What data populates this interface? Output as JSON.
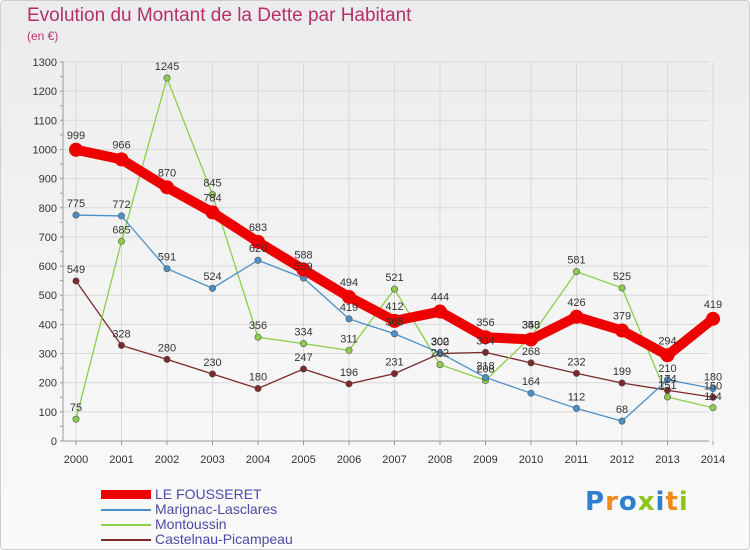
{
  "title": "Evolution du Montant de la Dette par Habitant",
  "subtitle": "(en €)",
  "logo": {
    "text": "Proxiti",
    "letter_colors": [
      "#2f7fd0",
      "#f08a1c",
      "#2f7fd0",
      "#8fc31f",
      "#2f7fd0",
      "#f08a1c",
      "#8fc31f"
    ]
  },
  "chart_data": {
    "type": "line",
    "x": [
      2000,
      2001,
      2002,
      2003,
      2004,
      2005,
      2006,
      2007,
      2008,
      2009,
      2010,
      2011,
      2012,
      2013,
      2014
    ],
    "ylim": [
      0,
      1300
    ],
    "yticks": [
      0,
      100,
      200,
      300,
      400,
      500,
      600,
      700,
      800,
      900,
      1000,
      1100,
      1200,
      1300
    ],
    "grid": true,
    "legend_position": "bottom-left",
    "series": [
      {
        "name": "LE FOUSSERET",
        "color": "#ee0000",
        "values": [
          999,
          966,
          870,
          784,
          683,
          588,
          494,
          412,
          444,
          356,
          348,
          426,
          379,
          294,
          419
        ]
      },
      {
        "name": "Marignac-Lasclares",
        "color": "#4a90c8",
        "values": [
          775,
          772,
          591,
          524,
          620,
          559,
          419,
          368,
          302,
          218,
          164,
          112,
          68,
          210,
          180
        ]
      },
      {
        "name": "Montoussin",
        "color": "#8ccd4a",
        "values": [
          75,
          685,
          1245,
          845,
          356,
          334,
          311,
          521,
          262,
          208,
          358,
          581,
          525,
          151,
          114
        ]
      },
      {
        "name": "Castelnau-Picampeau",
        "color": "#7a2a2a",
        "values": [
          549,
          328,
          280,
          230,
          180,
          247,
          196,
          231,
          300,
          304,
          268,
          232,
          199,
          174,
          150
        ]
      }
    ]
  }
}
